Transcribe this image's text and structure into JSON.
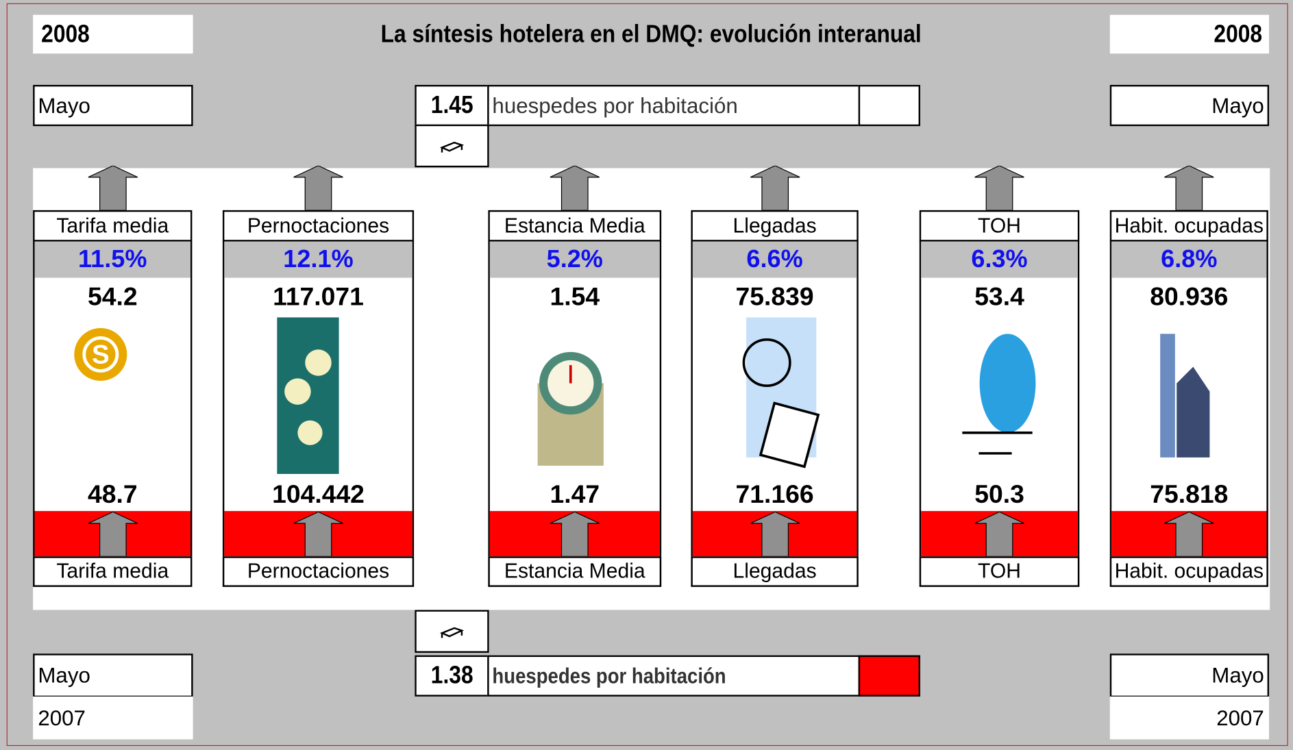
{
  "header": {
    "year_left": "2008",
    "title": "La síntesis  hotelera en el DMQ: evolución interanual",
    "year_right": "2008"
  },
  "top": {
    "month_left": "Mayo",
    "month_right": "Mayo",
    "guests": "1.45",
    "guests_label": "huespedes  por habitación"
  },
  "cards": [
    {
      "label_top": "Tarifa media",
      "change": "11.5%",
      "value_2008": "54.2",
      "value_2007": "48.7",
      "label_bottom": "Tarifa media"
    },
    {
      "label_top": "Pernoctaciones",
      "change": "12.1%",
      "value_2008": "117.071",
      "value_2007": "104.442",
      "label_bottom": "Pernoctaciones"
    },
    {
      "label_top": "Estancia Media",
      "change": "5.2%",
      "value_2008": "1.54",
      "value_2007": "1.47",
      "label_bottom": "Estancia Media"
    },
    {
      "label_top": "Llegadas",
      "change": "6.6%",
      "value_2008": "75.839",
      "value_2007": "71.166",
      "label_bottom": "Llegadas"
    },
    {
      "label_top": "TOH",
      "change": "6.3%",
      "value_2008": "53.4",
      "value_2007": "50.3",
      "label_bottom": "TOH"
    },
    {
      "label_top": "Habit. ocupadas",
      "change": "6.8%",
      "value_2008": "80.936",
      "value_2007": "75.818",
      "label_bottom": "Habit. ocupadas"
    }
  ],
  "bottom": {
    "month_left": "Mayo",
    "year_left": "2007",
    "month_right": "Mayo",
    "year_right": "2007",
    "guests": "1.38",
    "guests_label": "huespedes  por habitación"
  }
}
